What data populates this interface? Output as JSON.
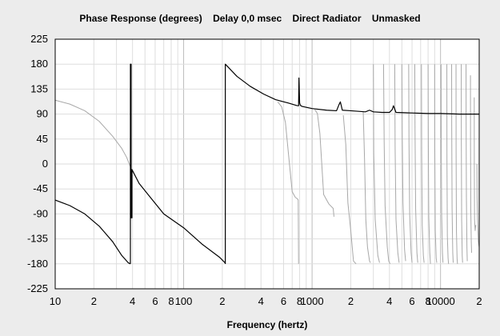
{
  "chart_data": {
    "type": "line",
    "title": "Phase Response (degrees)    Delay 0,0 msec    Direct Radiator    Unmasked",
    "xlabel": "Frequency (hertz)",
    "ylabel": "",
    "x_scale": "log",
    "xlim": [
      10,
      20000
    ],
    "ylim": [
      -225,
      225
    ],
    "grid": true,
    "y_ticks": [
      225,
      180,
      135,
      90,
      45,
      0,
      -45,
      -90,
      -135,
      -180,
      -225
    ],
    "y_tick_labels": [
      "225",
      "180",
      "135",
      "90",
      "45",
      "0",
      "-45",
      "-90",
      "-135",
      "-180",
      "-225"
    ],
    "x_ticks": [
      10,
      20,
      40,
      60,
      80,
      100,
      200,
      400,
      600,
      800,
      1000,
      2000,
      4000,
      6000,
      8000,
      10000,
      20000
    ],
    "x_tick_labels": [
      "10",
      "2",
      "4",
      "6",
      "8",
      "100",
      "2",
      "4",
      "6",
      "8",
      "1000",
      "2",
      "4",
      "6",
      "8",
      "10000",
      "2"
    ],
    "series": [
      {
        "style": "black",
        "segments": [
          {
            "x": [
              10,
              13,
              17,
              22,
              28,
              33,
              37,
              38.5
            ],
            "y": [
              -65,
              -75,
              -90,
              -112,
              -140,
              -165,
              -178,
              -180
            ]
          },
          {
            "x": [
              38.5,
              38.5,
              39,
              39,
              39.6,
              39.6,
              40
            ],
            "y": [
              -180,
              180,
              180,
              -97,
              -97,
              -10,
              -12
            ]
          },
          {
            "x": [
              40,
              45,
              55,
              70,
              100,
              140,
              190,
              210,
              211
            ],
            "y": [
              -12,
              -35,
              -60,
              -90,
              -115,
              -145,
              -168,
              -178,
              -180
            ]
          },
          {
            "x": [
              211,
              211,
              260,
              330,
              420,
              520,
              650,
              770
            ],
            "y": [
              -180,
              180,
              158,
              140,
              126,
              116,
              110,
              105
            ]
          },
          {
            "x": [
              770,
              785,
              790,
              800,
              810,
              830
            ],
            "y": [
              105,
              105,
              155,
              110,
              106,
              104
            ]
          },
          {
            "x": [
              830,
              1000,
              1300,
              1550,
              1620,
              1660,
              1720,
              2000,
              2600,
              2800,
              3000,
              3500,
              4000,
              4200,
              4300,
              4500,
              6000,
              8000,
              10000,
              14000,
              20000
            ],
            "y": [
              104,
              100,
              97,
              96,
              107,
              112,
              97,
              96,
              94,
              97,
              94,
              93,
              93,
              98,
              105,
              93,
              92,
              91,
              91,
              90,
              90
            ]
          }
        ]
      },
      {
        "style": "gray",
        "segments": [
          {
            "x": [
              10,
              13,
              17,
              22,
              28,
              33,
              36,
              38.5,
              39.5
            ],
            "y": [
              115,
              108,
              96,
              77,
              50,
              28,
              12,
              -5,
              -15
            ]
          },
          {
            "x": [
              540,
              580,
              620,
              660,
              700,
              740,
              770,
              780,
              785
            ],
            "y": [
              112,
              103,
              75,
              10,
              -50,
              -60,
              -63,
              -65,
              -180
            ]
          },
          {
            "x": [
              1050,
              1100,
              1150,
              1230,
              1350,
              1460,
              1480
            ],
            "y": [
              98,
              91,
              55,
              -55,
              -72,
              -80,
              -95
            ]
          },
          {
            "x": [
              1750,
              1830,
              1900,
              2000,
              2100,
              2200
            ],
            "y": [
              88,
              35,
              -70,
              -120,
              -175,
              -180
            ]
          },
          {
            "x": [
              2500,
              2560,
              2620,
              2700,
              2800,
              2850
            ],
            "y": [
              95,
              10,
              -100,
              -150,
              -175,
              -178
            ]
          },
          {
            "x": [
              3000,
              3020,
              3100,
              3250,
              3350
            ],
            "y": [
              180,
              20,
              -100,
              -165,
              -178
            ]
          },
          {
            "x": [
              3600,
              3640,
              3700,
              3850,
              3950,
              4050
            ],
            "y": [
              180,
              40,
              -75,
              -150,
              -175,
              -180
            ]
          },
          {
            "x": [
              4400,
              4430,
              4500,
              4650,
              4760
            ],
            "y": [
              180,
              30,
              -100,
              -160,
              -178
            ]
          },
          {
            "x": [
              5000,
              5030,
              5100,
              5250,
              5350
            ],
            "y": [
              180,
              60,
              -70,
              -155,
              -175
            ]
          },
          {
            "x": [
              5650,
              5680,
              5750,
              5900,
              6000
            ],
            "y": [
              180,
              40,
              -90,
              -160,
              -178
            ]
          },
          {
            "x": [
              6300,
              6330,
              6400,
              6550,
              6650
            ],
            "y": [
              180,
              60,
              -80,
              -160,
              -178
            ]
          },
          {
            "x": [
              7100,
              7130,
              7200,
              7350,
              7450
            ],
            "y": [
              180,
              20,
              -110,
              -165,
              -178
            ]
          },
          {
            "x": [
              8000,
              8030,
              8100,
              8250,
              8350
            ],
            "y": [
              180,
              50,
              -95,
              -160,
              -180
            ]
          },
          {
            "x": [
              9000,
              9020,
              9100,
              9250,
              9350
            ],
            "y": [
              180,
              30,
              -120,
              -170,
              -178
            ]
          },
          {
            "x": [
              10100,
              10120,
              10200,
              10350,
              10450
            ],
            "y": [
              180,
              60,
              -90,
              -160,
              -178
            ]
          },
          {
            "x": [
              11200,
              11220,
              11300,
              11450,
              11550
            ],
            "y": [
              180,
              10,
              -130,
              -170,
              -180
            ]
          },
          {
            "x": [
              12200,
              12220,
              12300,
              12450,
              12550
            ],
            "y": [
              180,
              70,
              -80,
              -160,
              -178
            ]
          },
          {
            "x": [
              13200,
              13220,
              13300,
              13450,
              13550
            ],
            "y": [
              180,
              20,
              -120,
              -170,
              -180
            ]
          },
          {
            "x": [
              14500,
              14520,
              14600,
              14750,
              14850
            ],
            "y": [
              180,
              50,
              -100,
              -165,
              -178
            ]
          },
          {
            "x": [
              15800,
              15820,
              15900,
              16050,
              16150
            ],
            "y": [
              180,
              80,
              -60,
              -150,
              -175
            ]
          },
          {
            "x": [
              17100,
              17120,
              17200,
              17350,
              17450
            ],
            "y": [
              160,
              40,
              -80,
              -140,
              -160
            ]
          },
          {
            "x": [
              18300,
              18320,
              18400,
              18600,
              18800
            ],
            "y": [
              120,
              0,
              -100,
              -120,
              -110
            ]
          },
          {
            "x": [
              19200,
              19250,
              19400,
              19700,
              20000
            ],
            "y": [
              0,
              -60,
              -100,
              -140,
              -150
            ]
          }
        ]
      }
    ]
  }
}
